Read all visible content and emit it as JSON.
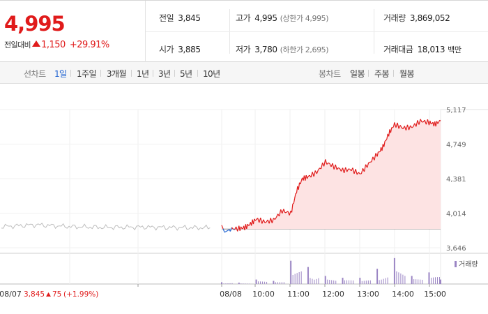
{
  "quote": {
    "price": "4,995",
    "change_label": "전일대비",
    "change": "1,150",
    "change_pct": "+29.91%",
    "stats": [
      {
        "label": "전일",
        "value": "3,845",
        "tone": "neutral",
        "sub": ""
      },
      {
        "label": "고가",
        "value": "4,995",
        "tone": "up",
        "sub": "(상한가 4,995)"
      },
      {
        "label": "거래량",
        "value": "3,869,052",
        "tone": "neutral",
        "sub": ""
      },
      {
        "label": "시가",
        "value": "3,885",
        "tone": "up",
        "sub": ""
      },
      {
        "label": "저가",
        "value": "3,780",
        "tone": "down",
        "sub": "(하한가 2,695)"
      },
      {
        "label": "거래대금",
        "value": "18,013",
        "tone": "neutral",
        "sub": "백만"
      }
    ]
  },
  "toolbar": {
    "line_title": "선차트",
    "line_periods": [
      "1일",
      "1주일",
      "3개월",
      "1년",
      "3년",
      "5년",
      "10년"
    ],
    "active_period": "1일",
    "candle_title": "봉차트",
    "candle_periods": [
      "일봉",
      "주봉",
      "월봉"
    ]
  },
  "colors": {
    "up": "#e01b1b",
    "down": "#1a5fd0",
    "prev_line": "#bdbdbd",
    "area_fill": "#fde3e3",
    "volume": "#9b85c4"
  },
  "chart_data": {
    "type": "line",
    "y_ticks": [
      "5,117",
      "4,749",
      "4,381",
      "4,014",
      "3,646"
    ],
    "ylim": [
      3646,
      5117
    ],
    "baseline": 3845,
    "x_tick_labels": [
      "08/07",
      "08/08",
      "10:00",
      "11:00",
      "12:00",
      "13:00",
      "14:00",
      "15:00"
    ],
    "prev_day_footer": {
      "date": "08/07",
      "price": "3,845",
      "change": "75",
      "change_pct": "(+1.99%)"
    },
    "volume_legend": "거래량",
    "prev_day_series": {
      "x": [
        "09:00",
        "10:00",
        "11:00",
        "12:00",
        "13:00",
        "14:00",
        "15:00"
      ],
      "values": [
        3870,
        3890,
        3870,
        3862,
        3866,
        3860,
        3858
      ]
    },
    "today_series": {
      "x": [
        "09:00",
        "09:05",
        "09:15",
        "09:30",
        "09:40",
        "09:50",
        "10:00",
        "10:15",
        "10:30",
        "10:45",
        "11:00",
        "11:10",
        "11:20",
        "11:30",
        "11:45",
        "12:00",
        "12:15",
        "12:30",
        "12:45",
        "13:00",
        "13:15",
        "13:30",
        "13:40",
        "13:50",
        "14:00",
        "14:15",
        "14:30",
        "14:45",
        "15:00",
        "15:10",
        "15:20"
      ],
      "values": [
        3885,
        3810,
        3845,
        3850,
        3860,
        3900,
        3950,
        3920,
        3940,
        4040,
        4010,
        4250,
        4380,
        4400,
        4450,
        4560,
        4510,
        4470,
        4480,
        4430,
        4540,
        4640,
        4720,
        4860,
        4960,
        4920,
        4930,
        4995,
        4980,
        4960,
        4995
      ]
    },
    "volume": {
      "x": [
        "09:00",
        "09:30",
        "10:00",
        "10:30",
        "11:00",
        "11:30",
        "12:00",
        "12:30",
        "13:00",
        "13:30",
        "14:00",
        "14:30",
        "15:00",
        "15:20"
      ],
      "values": [
        200,
        150,
        500,
        350,
        2600,
        1900,
        900,
        700,
        700,
        1700,
        2900,
        900,
        1300,
        500
      ]
    }
  }
}
